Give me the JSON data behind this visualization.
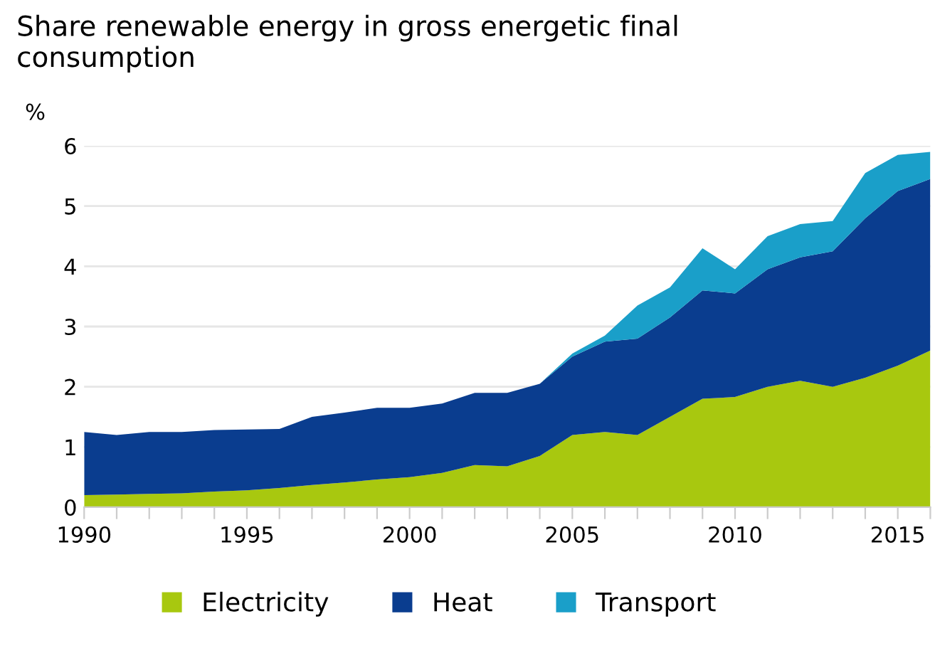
{
  "chart_data": {
    "type": "area",
    "stacked": true,
    "title": "Share renewable energy in gross energetic final\nconsumption",
    "ylabel": "%",
    "x": [
      1990,
      1991,
      1992,
      1993,
      1994,
      1995,
      1996,
      1997,
      1998,
      1999,
      2000,
      2001,
      2002,
      2003,
      2004,
      2005,
      2006,
      2007,
      2008,
      2009,
      2010,
      2011,
      2012,
      2013,
      2014,
      2015,
      2016
    ],
    "series": [
      {
        "name": "Electricity",
        "color": "#a8c80f",
        "values": [
          0.2,
          0.21,
          0.22,
          0.23,
          0.26,
          0.28,
          0.32,
          0.37,
          0.41,
          0.46,
          0.5,
          0.57,
          0.7,
          0.68,
          0.85,
          1.2,
          1.25,
          1.2,
          1.5,
          1.8,
          1.83,
          2.0,
          2.1,
          2.0,
          2.15,
          2.35,
          2.6
        ]
      },
      {
        "name": "Heat",
        "color": "#0a3d8f",
        "values": [
          1.05,
          0.99,
          1.03,
          1.02,
          1.02,
          1.01,
          0.98,
          1.13,
          1.16,
          1.19,
          1.15,
          1.15,
          1.2,
          1.22,
          1.2,
          1.3,
          1.5,
          1.6,
          1.65,
          1.8,
          1.72,
          1.95,
          2.05,
          2.25,
          2.65,
          2.9,
          2.85
        ]
      },
      {
        "name": "Transport",
        "color": "#1a9fc9",
        "values": [
          0,
          0,
          0,
          0,
          0,
          0,
          0,
          0,
          0,
          0,
          0,
          0,
          0,
          0,
          0,
          0.05,
          0.1,
          0.55,
          0.5,
          0.7,
          0.4,
          0.55,
          0.55,
          0.5,
          0.75,
          0.6,
          0.45
        ]
      }
    ],
    "xlim": [
      1990,
      2016
    ],
    "xticks": [
      1990,
      {
        "value": 1991,
        "label": null
      },
      {
        "value": 1992,
        "label": null
      },
      {
        "value": 1993,
        "label": null
      },
      {
        "value": 1994,
        "label": null
      },
      1995,
      {
        "value": 1996,
        "label": null
      },
      {
        "value": 1997,
        "label": null
      },
      {
        "value": 1998,
        "label": null
      },
      {
        "value": 1999,
        "label": null
      },
      2000,
      {
        "value": 2001,
        "label": null
      },
      {
        "value": 2002,
        "label": null
      },
      {
        "value": 2003,
        "label": null
      },
      {
        "value": 2004,
        "label": null
      },
      2005,
      {
        "value": 2006,
        "label": null
      },
      {
        "value": 2007,
        "label": null
      },
      {
        "value": 2008,
        "label": null
      },
      {
        "value": 2009,
        "label": null
      },
      2010,
      {
        "value": 2011,
        "label": null
      },
      {
        "value": 2012,
        "label": null
      },
      {
        "value": 2013,
        "label": null
      },
      {
        "value": 2014,
        "label": null
      },
      2015,
      {
        "value": 2016,
        "label": null
      }
    ],
    "ylim": [
      0,
      6
    ],
    "yticks": [
      0,
      1,
      2,
      3,
      4,
      5,
      6
    ],
    "grid": "y",
    "legend": "bottom"
  }
}
